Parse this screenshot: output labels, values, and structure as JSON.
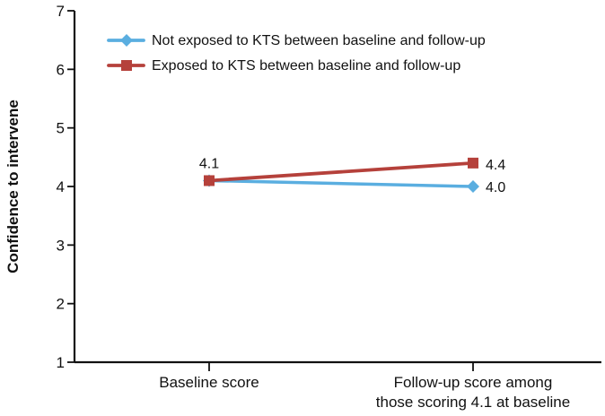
{
  "chart_data": {
    "type": "line",
    "title": "",
    "xlabel": "",
    "ylabel": "Confidence to intervene",
    "ylim": [
      1,
      7
    ],
    "y_ticks": [
      "1",
      "2",
      "3",
      "4",
      "5",
      "6",
      "7"
    ],
    "categories": [
      [
        "Baseline score"
      ],
      [
        "Follow-up score among",
        "those scoring 4.1 at baseline"
      ]
    ],
    "grid": false,
    "legend_position": "top-left",
    "series": [
      {
        "name": "Not exposed to KTS between baseline and follow-up",
        "values": [
          4.1,
          4.0
        ],
        "color": "#5aaee0",
        "marker": "diamond",
        "labels": [
          "",
          "4.0"
        ]
      },
      {
        "name": "Exposed to KTS between baseline and follow-up",
        "values": [
          4.1,
          4.4
        ],
        "color": "#b5413b",
        "marker": "square",
        "labels": [
          "4.1",
          "4.4"
        ]
      }
    ]
  }
}
